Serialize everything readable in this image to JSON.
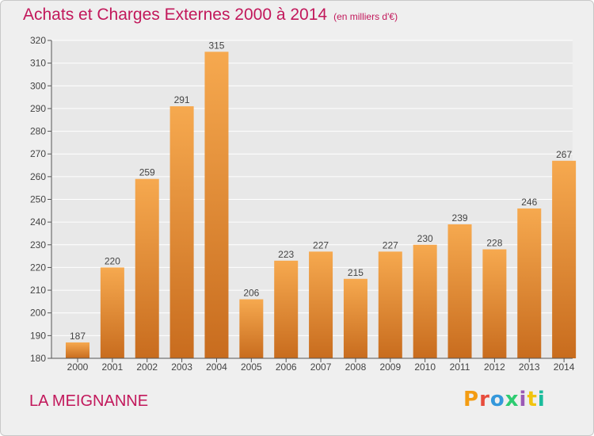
{
  "header": {
    "title": "Achats et Charges Externes 2000 à 2014",
    "unit": "(en milliers d'€)"
  },
  "footer": {
    "commune": "LA MEIGNANNE",
    "logo_text": "Proxiti",
    "logo_colors": [
      "#f39c12",
      "#e74c3c",
      "#3498db",
      "#2ecc71",
      "#9b59b6",
      "#f1c40f",
      "#1abc9c"
    ]
  },
  "colors": {
    "title": "#c2185b",
    "bar_top": "#f6a94f",
    "bar_bottom": "#c86c1e",
    "grid": "#ffffff",
    "plot_bg": "#e8e8e8"
  },
  "chart_data": {
    "type": "bar",
    "categories": [
      "2000",
      "2001",
      "2002",
      "2003",
      "2004",
      "2005",
      "2006",
      "2007",
      "2008",
      "2009",
      "2010",
      "2011",
      "2012",
      "2013",
      "2014"
    ],
    "values": [
      187,
      220,
      259,
      291,
      315,
      206,
      223,
      227,
      215,
      227,
      230,
      239,
      228,
      246,
      267
    ],
    "ylim": [
      180,
      320
    ],
    "yticks": [
      180,
      190,
      200,
      210,
      220,
      230,
      240,
      250,
      260,
      270,
      280,
      290,
      300,
      310,
      320
    ],
    "grid": true,
    "data_labels": true
  }
}
